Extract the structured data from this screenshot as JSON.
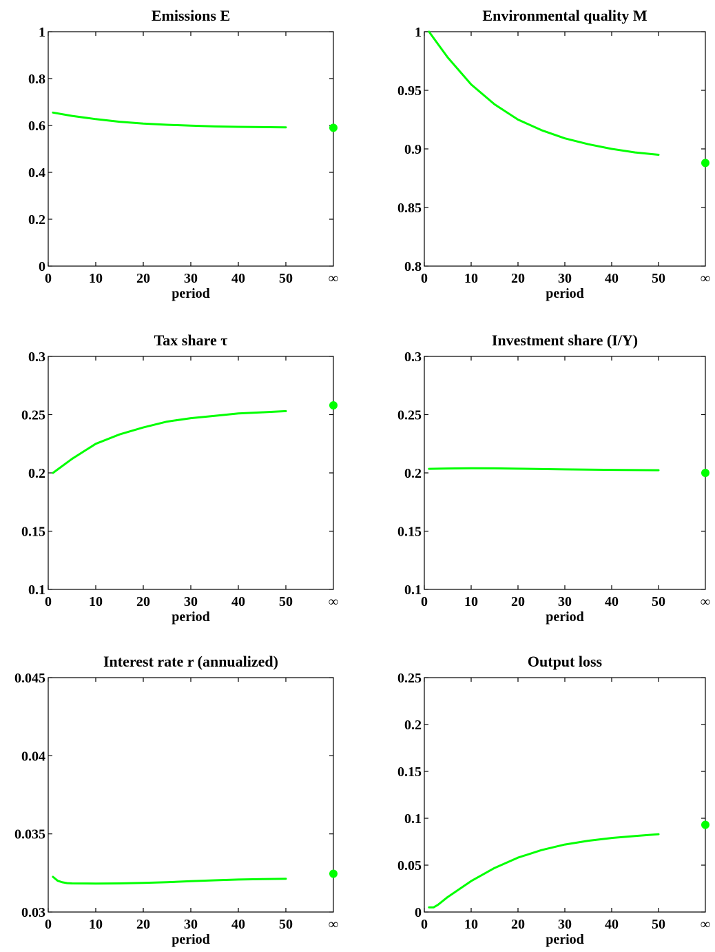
{
  "chart_data": [
    {
      "type": "line",
      "title": "Emissions E",
      "xlabel": "period",
      "xlim": [
        0,
        60
      ],
      "xticks": [
        0,
        10,
        20,
        30,
        40,
        50
      ],
      "xtick_labels": [
        "0",
        "10",
        "20",
        "30",
        "40",
        "50"
      ],
      "inf_label": "∞",
      "ylim": [
        0,
        1
      ],
      "yticks": [
        0,
        0.2,
        0.4,
        0.6,
        0.8,
        1
      ],
      "ytick_labels": [
        "0",
        "0.2",
        "0.4",
        "0.6",
        "0.8",
        "1"
      ],
      "grid": false,
      "x": [
        1,
        5,
        10,
        15,
        20,
        25,
        30,
        35,
        40,
        45,
        50
      ],
      "values": [
        0.655,
        0.641,
        0.627,
        0.616,
        0.608,
        0.603,
        0.599,
        0.596,
        0.594,
        0.593,
        0.592
      ],
      "steady_state": 0.59
    },
    {
      "type": "line",
      "title": "Environmental quality M",
      "xlabel": "period",
      "xlim": [
        0,
        60
      ],
      "xticks": [
        0,
        10,
        20,
        30,
        40,
        50
      ],
      "xtick_labels": [
        "0",
        "10",
        "20",
        "30",
        "40",
        "50"
      ],
      "inf_label": "∞",
      "ylim": [
        0.8,
        1
      ],
      "yticks": [
        0.8,
        0.85,
        0.9,
        0.95,
        1
      ],
      "ytick_labels": [
        "0.8",
        "0.85",
        "0.9",
        "0.95",
        "1"
      ],
      "grid": false,
      "x": [
        1,
        5,
        10,
        15,
        20,
        25,
        30,
        35,
        40,
        45,
        50
      ],
      "values": [
        1.0,
        0.978,
        0.955,
        0.938,
        0.925,
        0.916,
        0.909,
        0.904,
        0.9,
        0.897,
        0.895
      ],
      "steady_state": 0.888
    },
    {
      "type": "line",
      "title": "Tax share τ",
      "xlabel": "period",
      "xlim": [
        0,
        60
      ],
      "xticks": [
        0,
        10,
        20,
        30,
        40,
        50
      ],
      "xtick_labels": [
        "0",
        "10",
        "20",
        "30",
        "40",
        "50"
      ],
      "inf_label": "∞",
      "ylim": [
        0.1,
        0.3
      ],
      "yticks": [
        0.1,
        0.15,
        0.2,
        0.25,
        0.3
      ],
      "ytick_labels": [
        "0.1",
        "0.15",
        "0.2",
        "0.25",
        "0.3"
      ],
      "grid": false,
      "x": [
        1,
        5,
        10,
        15,
        20,
        25,
        30,
        35,
        40,
        45,
        50
      ],
      "values": [
        0.2,
        0.212,
        0.225,
        0.233,
        0.239,
        0.244,
        0.247,
        0.249,
        0.251,
        0.252,
        0.253
      ],
      "steady_state": 0.258
    },
    {
      "type": "line",
      "title": "Investment share (I/Y)",
      "xlabel": "period",
      "xlim": [
        0,
        60
      ],
      "xticks": [
        0,
        10,
        20,
        30,
        40,
        50
      ],
      "xtick_labels": [
        "0",
        "10",
        "20",
        "30",
        "40",
        "50"
      ],
      "inf_label": "∞",
      "ylim": [
        0.1,
        0.3
      ],
      "yticks": [
        0.1,
        0.15,
        0.2,
        0.25,
        0.3
      ],
      "ytick_labels": [
        "0.1",
        "0.15",
        "0.2",
        "0.25",
        "0.3"
      ],
      "grid": false,
      "x": [
        1,
        5,
        10,
        15,
        20,
        25,
        30,
        35,
        40,
        45,
        50
      ],
      "values": [
        0.2035,
        0.2038,
        0.204,
        0.2039,
        0.2036,
        0.2033,
        0.203,
        0.2028,
        0.2026,
        0.2024,
        0.2023
      ],
      "steady_state": 0.2
    },
    {
      "type": "line",
      "title": "Interest rate r (annualized)",
      "xlabel": "period",
      "xlim": [
        0,
        60
      ],
      "xticks": [
        0,
        10,
        20,
        30,
        40,
        50
      ],
      "xtick_labels": [
        "0",
        "10",
        "20",
        "30",
        "40",
        "50"
      ],
      "inf_label": "∞",
      "ylim": [
        0.03,
        0.045
      ],
      "yticks": [
        0.03,
        0.035,
        0.04,
        0.045
      ],
      "ytick_labels": [
        "0.03",
        "0.035",
        "0.04",
        "0.045"
      ],
      "grid": false,
      "x": [
        1,
        2,
        3,
        4,
        5,
        10,
        15,
        20,
        25,
        30,
        35,
        40,
        45,
        50
      ],
      "values": [
        0.03225,
        0.032,
        0.0319,
        0.03185,
        0.03183,
        0.03182,
        0.03183,
        0.03186,
        0.03191,
        0.03197,
        0.03203,
        0.03208,
        0.03211,
        0.03213
      ],
      "steady_state": 0.03245
    },
    {
      "type": "line",
      "title": "Output loss",
      "xlabel": "period",
      "xlim": [
        0,
        60
      ],
      "xticks": [
        0,
        10,
        20,
        30,
        40,
        50
      ],
      "xtick_labels": [
        "0",
        "10",
        "20",
        "30",
        "40",
        "50"
      ],
      "inf_label": "∞",
      "ylim": [
        0,
        0.25
      ],
      "yticks": [
        0,
        0.05,
        0.1,
        0.15,
        0.2,
        0.25
      ],
      "ytick_labels": [
        "0",
        "0.05",
        "0.1",
        "0.15",
        "0.2",
        "0.25"
      ],
      "grid": false,
      "x": [
        1,
        2,
        3,
        5,
        10,
        15,
        20,
        25,
        30,
        35,
        40,
        45,
        50
      ],
      "values": [
        0.005,
        0.005,
        0.008,
        0.016,
        0.033,
        0.047,
        0.058,
        0.066,
        0.072,
        0.076,
        0.079,
        0.081,
        0.083
      ],
      "steady_state": 0.093
    }
  ],
  "colors": {
    "series": "#00ff00",
    "axes": "#000000"
  }
}
